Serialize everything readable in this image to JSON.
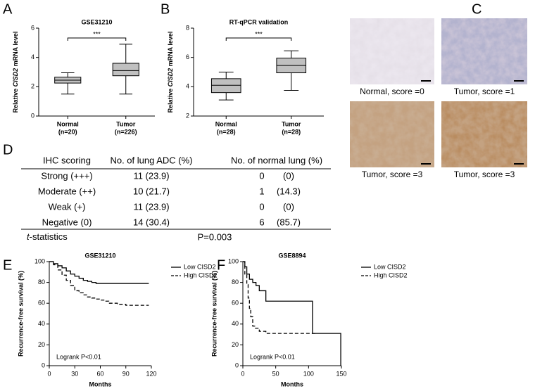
{
  "chart_data": [
    {
      "type": "box",
      "label": "A",
      "title": "GSE31210",
      "ylabel": [
        "Relative",
        "CISD2",
        "mRNA level"
      ],
      "categories": [
        "Normal",
        "Tumor"
      ],
      "category_notes": [
        "(n=20)",
        "(n=226)"
      ],
      "boxes": [
        {
          "min": 1.5,
          "q1": 2.25,
          "median": 2.45,
          "q3": 2.65,
          "max": 2.95
        },
        {
          "min": 1.5,
          "q1": 2.75,
          "median": 3.1,
          "q3": 3.6,
          "max": 4.9
        }
      ],
      "color": "#c0c0c0",
      "significance": "***",
      "ylim": [
        0,
        6
      ],
      "yticks": [
        0,
        2,
        4,
        6
      ]
    },
    {
      "type": "box",
      "label": "B",
      "title": "RT-qPCR validation",
      "ylabel": [
        "Relative",
        "CISD2",
        "mRNA level"
      ],
      "categories": [
        "Normal",
        "Tumor"
      ],
      "category_notes": [
        "(n=28)",
        "(n=28)"
      ],
      "boxes": [
        {
          "min": 3.1,
          "q1": 3.6,
          "median": 4.1,
          "q3": 4.55,
          "max": 5.0
        },
        {
          "min": 3.75,
          "q1": 4.95,
          "median": 5.45,
          "q3": 5.95,
          "max": 6.45
        }
      ],
      "color": "#c0c0c0",
      "significance": "***",
      "ylim": [
        2,
        8
      ],
      "yticks": [
        2,
        4,
        6,
        8
      ]
    },
    {
      "type": "line",
      "label": "E",
      "title": "GSE31210",
      "xlabel": "Months",
      "ylabel": "Recurrence-free survival (%)",
      "step": true,
      "series": [
        {
          "name": "Low CISD2",
          "color": "#000000",
          "line_style": "solid",
          "x": [
            0,
            5,
            10,
            15,
            20,
            25,
            30,
            35,
            40,
            45,
            50,
            55,
            60,
            70,
            80,
            90,
            100,
            110,
            117
          ],
          "values": [
            100,
            98,
            96,
            94,
            91,
            88,
            86,
            84,
            82,
            81,
            80,
            79,
            79,
            79,
            79,
            79,
            79,
            79,
            79
          ]
        },
        {
          "name": "High CISD2",
          "color": "#000000",
          "line_style": "dashed",
          "x": [
            0,
            5,
            10,
            15,
            20,
            25,
            30,
            35,
            40,
            45,
            50,
            55,
            60,
            65,
            70,
            80,
            90,
            100,
            117
          ],
          "values": [
            100,
            97,
            92,
            87,
            82,
            77,
            72,
            70,
            68,
            66,
            65,
            64,
            63,
            62,
            60,
            59,
            58,
            58,
            58
          ]
        }
      ],
      "annotation": "Logrank P<0.01",
      "legend": "right",
      "xlim": [
        0,
        120
      ],
      "xticks": [
        0,
        30,
        60,
        90,
        120
      ],
      "ylim": [
        0,
        100
      ],
      "yticks": [
        0,
        20,
        40,
        60,
        80,
        100
      ]
    },
    {
      "type": "line",
      "label": "F",
      "title": "GSE8894",
      "xlabel": "Months",
      "ylabel": "Recurrence-free survival (%)",
      "step": true,
      "series": [
        {
          "name": "Low CISD2",
          "color": "#000000",
          "line_style": "solid",
          "x": [
            0,
            3,
            6,
            10,
            15,
            20,
            25,
            35,
            105,
            106,
            148,
            149
          ],
          "values": [
            100,
            95,
            88,
            83,
            80,
            77,
            72,
            62,
            62,
            31,
            31,
            0
          ]
        },
        {
          "name": "High CISD2",
          "color": "#000000",
          "line_style": "dashed",
          "x": [
            0,
            3,
            6,
            8,
            10,
            12,
            15,
            18,
            25,
            35,
            50,
            100,
            110
          ],
          "values": [
            100,
            88,
            78,
            65,
            55,
            47,
            38,
            36,
            33,
            31,
            31,
            31,
            31
          ]
        }
      ],
      "annotation": "Logrank P<0.01",
      "legend": "right",
      "xlim": [
        0,
        150
      ],
      "xticks": [
        0,
        50,
        100,
        150
      ],
      "ylim": [
        0,
        100
      ],
      "yticks": [
        0,
        20,
        40,
        60,
        80,
        100
      ]
    }
  ],
  "images": {
    "label": "C",
    "captions": [
      "Normal, score =0",
      "Tumor, score =1",
      "Tumor, score =3",
      "Tumor, score =3"
    ]
  },
  "table": {
    "label": "D",
    "header": [
      "IHC scoring",
      "No. of lung ADC (%)",
      "No. of normal lung (%)"
    ],
    "rows": [
      [
        "Strong (+++)",
        "11 (23.9)",
        "0",
        "(0)"
      ],
      [
        "Moderate (++)",
        "10 (21.7)",
        "1",
        "(14.3)"
      ],
      [
        "Weak (+)",
        "11 (23.9)",
        "0",
        "(0)"
      ],
      [
        "Negative (0)",
        "14 (30.4)",
        "6",
        "(85.7)"
      ]
    ],
    "footer": [
      [
        "t",
        "-statistics"
      ],
      "P=0.003"
    ]
  }
}
